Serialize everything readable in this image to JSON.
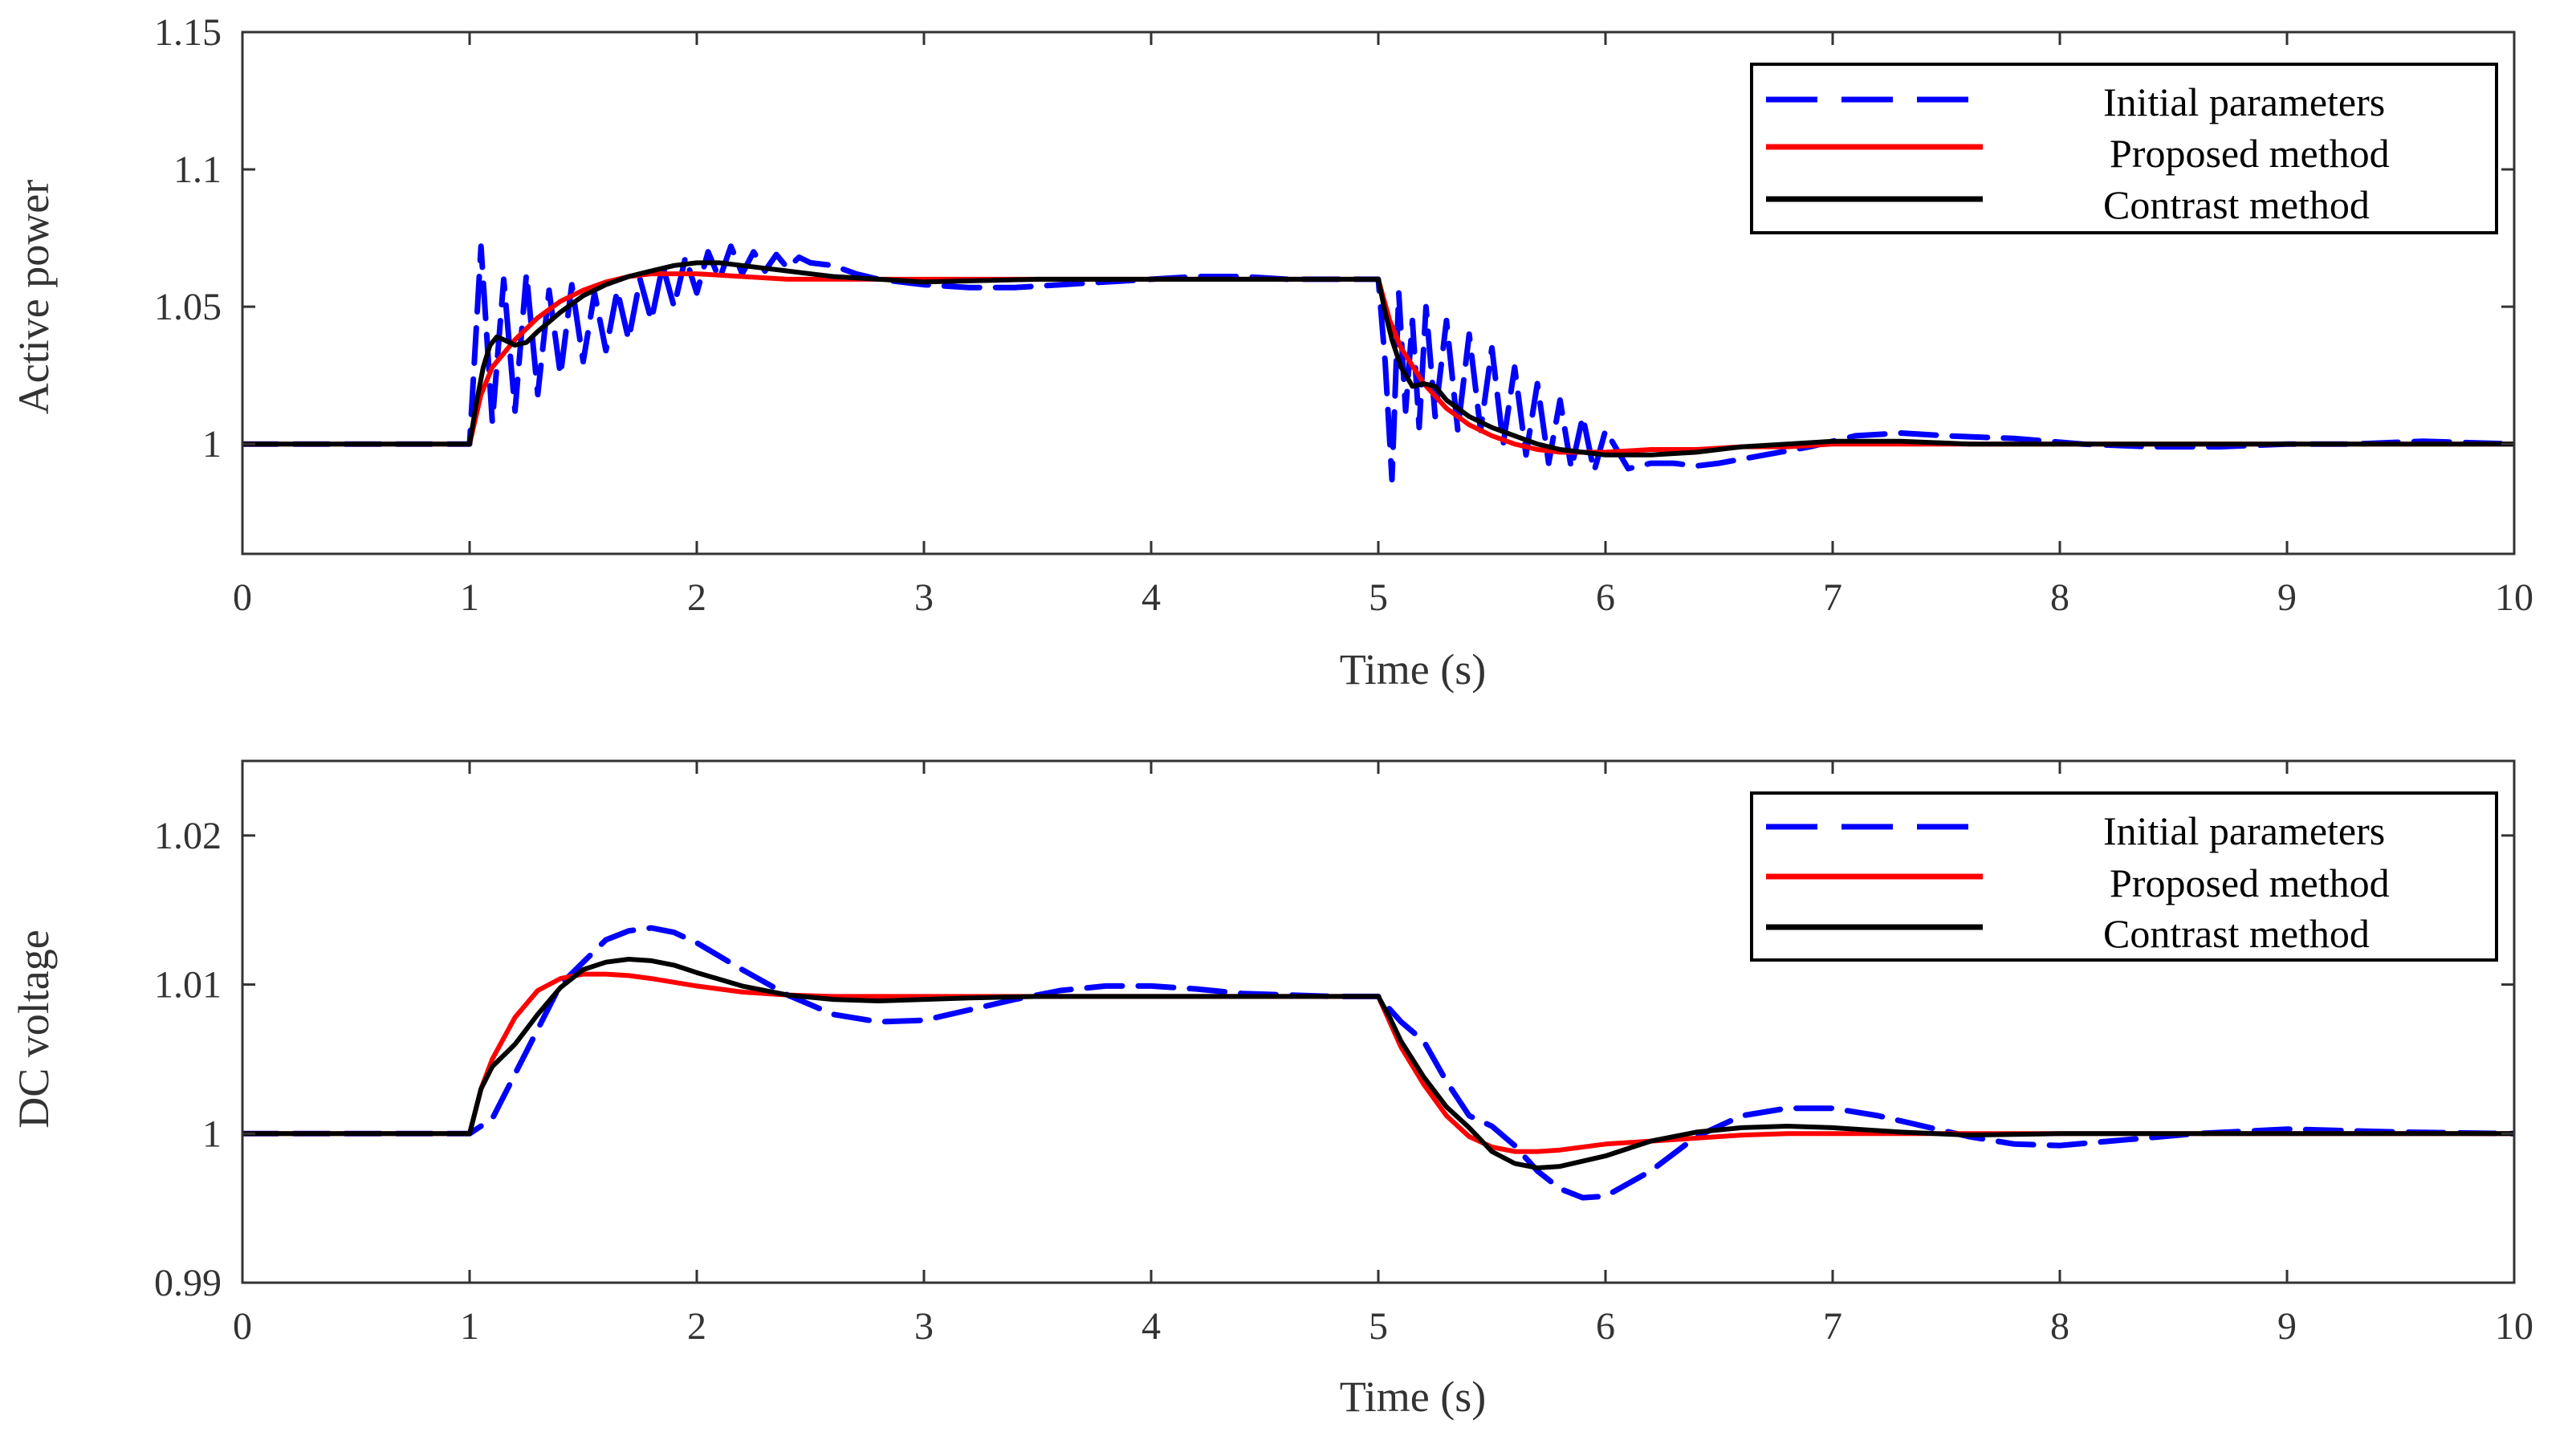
{
  "chart_data": [
    {
      "type": "line",
      "title": "",
      "xlabel": "Time (s)",
      "ylabel": "Active power",
      "xlim": [
        0,
        10
      ],
      "ylim": [
        0.96,
        1.15
      ],
      "xticks": [
        0,
        1,
        2,
        3,
        4,
        5,
        6,
        7,
        8,
        9,
        10
      ],
      "xtick_labels": [
        "0",
        "1",
        "2",
        "3",
        "4",
        "5",
        "6",
        "7",
        "8",
        "9",
        "10"
      ],
      "yticks": [
        1.0,
        1.05,
        1.1,
        1.15
      ],
      "ytick_labels": [
        "1",
        "1.05",
        "1.1",
        "1.15"
      ],
      "grid": false,
      "legend_position": "top-right",
      "series": [
        {
          "name": "Initial parameters",
          "color": "#0000ff",
          "dash": "dashed",
          "x": [
            0,
            1.0,
            1.05,
            1.1,
            1.15,
            1.2,
            1.25,
            1.3,
            1.35,
            1.4,
            1.45,
            1.5,
            1.55,
            1.6,
            1.65,
            1.7,
            1.75,
            1.8,
            1.85,
            1.9,
            1.95,
            2.0,
            2.05,
            2.1,
            2.15,
            2.2,
            2.25,
            2.3,
            2.35,
            2.4,
            2.45,
            2.5,
            2.6,
            2.7,
            2.8,
            3.0,
            3.2,
            3.4,
            3.6,
            3.8,
            4.0,
            4.2,
            4.4,
            4.6,
            4.8,
            5.0,
            5.03,
            5.06,
            5.09,
            5.12,
            5.15,
            5.18,
            5.21,
            5.25,
            5.3,
            5.35,
            5.4,
            5.45,
            5.5,
            5.55,
            5.6,
            5.65,
            5.7,
            5.75,
            5.8,
            5.85,
            5.9,
            5.95,
            6.0,
            6.1,
            6.2,
            6.3,
            6.4,
            6.5,
            6.7,
            6.9,
            7.1,
            7.3,
            7.5,
            7.8,
            8.1,
            8.4,
            8.7,
            9.0,
            9.3,
            9.6,
            10.0
          ],
          "y": [
            1.0,
            1.0,
            1.072,
            1.008,
            1.06,
            1.012,
            1.062,
            1.018,
            1.056,
            1.025,
            1.058,
            1.03,
            1.055,
            1.034,
            1.056,
            1.038,
            1.06,
            1.045,
            1.065,
            1.05,
            1.068,
            1.055,
            1.07,
            1.06,
            1.072,
            1.062,
            1.07,
            1.063,
            1.069,
            1.064,
            1.068,
            1.066,
            1.065,
            1.062,
            1.06,
            1.058,
            1.057,
            1.057,
            1.058,
            1.059,
            1.06,
            1.061,
            1.061,
            1.06,
            1.06,
            1.06,
            1.03,
            0.987,
            1.055,
            1.012,
            1.045,
            1.006,
            1.05,
            1.01,
            1.045,
            1.005,
            1.04,
            1.005,
            1.035,
            1.0,
            1.028,
            0.996,
            1.022,
            0.993,
            1.016,
            0.991,
            1.01,
            0.99,
            1.005,
            0.991,
            0.993,
            0.993,
            0.992,
            0.993,
            0.996,
            0.999,
            1.003,
            1.004,
            1.003,
            1.002,
            1.0,
            0.999,
            0.999,
            1.0,
            1.0,
            1.001,
            1.0
          ]
        },
        {
          "name": "Proposed method",
          "color": "#ff0000",
          "dash": "solid",
          "x": [
            0,
            1.0,
            1.05,
            1.1,
            1.2,
            1.3,
            1.4,
            1.5,
            1.6,
            1.7,
            1.8,
            1.9,
            2.0,
            2.2,
            2.4,
            2.6,
            2.8,
            3.0,
            3.5,
            4.0,
            4.5,
            5.0,
            5.05,
            5.1,
            5.2,
            5.3,
            5.4,
            5.5,
            5.6,
            5.7,
            5.8,
            5.9,
            6.0,
            6.2,
            6.4,
            6.6,
            6.8,
            7.0,
            7.5,
            8.0,
            9.0,
            10.0
          ],
          "y": [
            1.0,
            1.0,
            1.018,
            1.028,
            1.038,
            1.046,
            1.052,
            1.056,
            1.059,
            1.061,
            1.062,
            1.062,
            1.062,
            1.061,
            1.06,
            1.06,
            1.06,
            1.06,
            1.06,
            1.06,
            1.06,
            1.06,
            1.045,
            1.035,
            1.022,
            1.013,
            1.007,
            1.003,
            1.0,
            0.998,
            0.997,
            0.997,
            0.997,
            0.998,
            0.998,
            0.999,
            0.999,
            1.0,
            1.0,
            1.0,
            1.0,
            1.0
          ]
        },
        {
          "name": "Contrast method",
          "color": "#000000",
          "dash": "solid",
          "x": [
            0,
            1.0,
            1.03,
            1.06,
            1.09,
            1.12,
            1.15,
            1.2,
            1.25,
            1.3,
            1.4,
            1.5,
            1.6,
            1.7,
            1.8,
            1.9,
            2.0,
            2.1,
            2.2,
            2.4,
            2.6,
            2.8,
            3.0,
            3.5,
            4.0,
            4.5,
            5.0,
            5.03,
            5.06,
            5.1,
            5.15,
            5.2,
            5.25,
            5.3,
            5.4,
            5.5,
            5.6,
            5.7,
            5.8,
            5.9,
            6.0,
            6.2,
            6.4,
            6.6,
            6.8,
            7.0,
            7.3,
            7.6,
            8.0,
            9.0,
            10.0
          ],
          "y": [
            1.0,
            1.0,
            1.015,
            1.028,
            1.036,
            1.039,
            1.038,
            1.036,
            1.037,
            1.041,
            1.048,
            1.054,
            1.058,
            1.061,
            1.063,
            1.065,
            1.066,
            1.066,
            1.065,
            1.063,
            1.061,
            1.06,
            1.059,
            1.06,
            1.06,
            1.06,
            1.06,
            1.048,
            1.038,
            1.028,
            1.021,
            1.022,
            1.021,
            1.016,
            1.01,
            1.006,
            1.003,
            1.0,
            0.998,
            0.997,
            0.996,
            0.996,
            0.997,
            0.999,
            1.0,
            1.001,
            1.001,
            1.0,
            1.0,
            1.0,
            1.0
          ]
        }
      ]
    },
    {
      "type": "line",
      "title": "",
      "xlabel": "Time (s)",
      "ylabel": "DC voltage",
      "xlim": [
        0,
        10
      ],
      "ylim": [
        0.99,
        1.025
      ],
      "xticks": [
        0,
        1,
        2,
        3,
        4,
        5,
        6,
        7,
        8,
        9,
        10
      ],
      "xtick_labels": [
        "0",
        "1",
        "2",
        "3",
        "4",
        "5",
        "6",
        "7",
        "8",
        "9",
        "10"
      ],
      "yticks": [
        0.99,
        1.0,
        1.01,
        1.02
      ],
      "ytick_labels": [
        "0.99",
        "1",
        "1.01",
        "1.02"
      ],
      "grid": false,
      "legend_position": "top-right",
      "series": [
        {
          "name": "Initial parameters",
          "color": "#0000ff",
          "dash": "dashed",
          "x": [
            0,
            1.0,
            1.1,
            1.2,
            1.3,
            1.4,
            1.5,
            1.6,
            1.7,
            1.8,
            1.9,
            2.0,
            2.2,
            2.4,
            2.6,
            2.8,
            3.0,
            3.2,
            3.4,
            3.6,
            3.8,
            4.0,
            4.2,
            4.4,
            4.6,
            4.8,
            5.0,
            5.1,
            5.2,
            5.3,
            5.4,
            5.5,
            5.6,
            5.7,
            5.8,
            5.9,
            6.0,
            6.2,
            6.4,
            6.6,
            6.8,
            7.0,
            7.2,
            7.4,
            7.6,
            7.8,
            8.0,
            8.3,
            8.6,
            9.0,
            9.5,
            10.0
          ],
          "y": [
            1.0,
            1.0,
            1.001,
            1.004,
            1.007,
            1.01,
            1.0115,
            1.013,
            1.0136,
            1.0138,
            1.0135,
            1.0128,
            1.011,
            1.0093,
            1.008,
            1.0075,
            1.0076,
            1.0083,
            1.009,
            1.0096,
            1.0099,
            1.0099,
            1.0097,
            1.0094,
            1.0093,
            1.0092,
            1.0092,
            1.0075,
            1.0062,
            1.0035,
            1.0012,
            1.0005,
            0.9992,
            0.9975,
            0.9963,
            0.9957,
            0.9958,
            0.9975,
            0.9998,
            1.0012,
            1.0017,
            1.0017,
            1.0012,
            1.0005,
            0.9998,
            0.9993,
            0.9992,
            0.9996,
            1.0,
            1.0003,
            1.0001,
            1.0
          ]
        },
        {
          "name": "Proposed method",
          "color": "#ff0000",
          "dash": "solid",
          "x": [
            0,
            1.0,
            1.05,
            1.1,
            1.2,
            1.3,
            1.4,
            1.5,
            1.6,
            1.7,
            1.8,
            2.0,
            2.2,
            2.4,
            2.6,
            2.8,
            3.0,
            3.5,
            4.0,
            4.5,
            5.0,
            5.05,
            5.1,
            5.2,
            5.3,
            5.4,
            5.5,
            5.6,
            5.7,
            5.8,
            6.0,
            6.2,
            6.4,
            6.6,
            6.8,
            7.0,
            7.5,
            8.0,
            9.0,
            10.0
          ],
          "y": [
            1.0,
            1.0,
            1.003,
            1.005,
            1.0078,
            1.0096,
            1.0104,
            1.0107,
            1.0107,
            1.0106,
            1.0104,
            1.0099,
            1.0095,
            1.0093,
            1.0092,
            1.0092,
            1.0092,
            1.0092,
            1.0092,
            1.0092,
            1.0092,
            1.0075,
            1.0058,
            1.0033,
            1.0012,
            0.9998,
            0.9991,
            0.9988,
            0.9988,
            0.9989,
            0.9993,
            0.9995,
            0.9997,
            0.9999,
            1.0,
            1.0,
            1.0,
            1.0,
            1.0,
            1.0
          ]
        },
        {
          "name": "Contrast method",
          "color": "#000000",
          "dash": "solid",
          "x": [
            0,
            1.0,
            1.05,
            1.1,
            1.2,
            1.3,
            1.4,
            1.5,
            1.6,
            1.7,
            1.8,
            1.9,
            2.0,
            2.2,
            2.4,
            2.6,
            2.8,
            3.0,
            3.2,
            3.5,
            4.0,
            4.5,
            5.0,
            5.05,
            5.1,
            5.2,
            5.3,
            5.4,
            5.5,
            5.6,
            5.7,
            5.8,
            6.0,
            6.2,
            6.4,
            6.6,
            6.8,
            7.0,
            7.3,
            7.6,
            8.0,
            9.0,
            10.0
          ],
          "y": [
            1.0,
            1.0,
            1.003,
            1.0045,
            1.006,
            1.008,
            1.0098,
            1.011,
            1.0115,
            1.0117,
            1.0116,
            1.0113,
            1.0108,
            1.0099,
            1.0093,
            1.009,
            1.0089,
            1.009,
            1.0091,
            1.0092,
            1.0092,
            1.0092,
            1.0092,
            1.0078,
            1.0062,
            1.0038,
            1.0018,
            1.0004,
            0.9988,
            0.998,
            0.9977,
            0.9978,
            0.9985,
            0.9995,
            1.0001,
            1.0004,
            1.0005,
            1.0004,
            1.0001,
            0.9999,
            1.0,
            1.0,
            1.0
          ]
        }
      ]
    }
  ]
}
